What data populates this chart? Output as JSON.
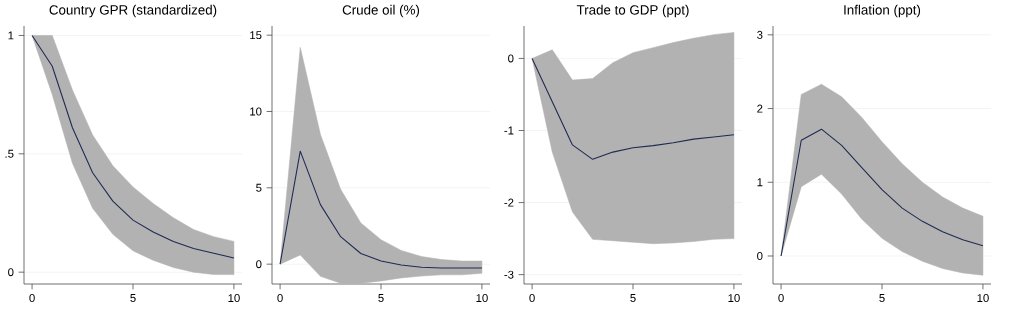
{
  "chart_data": [
    {
      "type": "line",
      "title": "Country GPR (standardized)",
      "x": [
        0,
        1,
        2,
        3,
        4,
        5,
        6,
        7,
        8,
        9,
        10
      ],
      "xlim": [
        -0.4,
        10.4
      ],
      "xticks": [
        0,
        5,
        10
      ],
      "ylim": [
        -0.05,
        1.04
      ],
      "yticks": [
        0,
        {
          "value": 0.5,
          "label": ".5"
        },
        1
      ],
      "grid": "y",
      "series": [
        {
          "color": "#1f2a52",
          "values": [
            1,
            0.87,
            0.61,
            0.42,
            0.3,
            0.22,
            0.17,
            0.13,
            0.1,
            0.08,
            0.06
          ],
          "upper": [
            1,
            1.0,
            0.77,
            0.58,
            0.45,
            0.36,
            0.29,
            0.23,
            0.18,
            0.15,
            0.13
          ],
          "lower": [
            1,
            0.75,
            0.46,
            0.27,
            0.16,
            0.09,
            0.05,
            0.02,
            0.0,
            -0.01,
            -0.01
          ]
        }
      ]
    },
    {
      "type": "line",
      "title": "Crude oil (%)",
      "x": [
        0,
        1,
        2,
        3,
        4,
        5,
        6,
        7,
        8,
        9,
        10
      ],
      "xlim": [
        -0.4,
        10.4
      ],
      "xticks": [
        0,
        5,
        10
      ],
      "ylim": [
        -1.3,
        15.6
      ],
      "yticks": [
        0,
        5,
        10,
        15
      ],
      "grid": "y",
      "series": [
        {
          "color": "#1f2a52",
          "values": [
            0,
            7.4,
            3.9,
            1.8,
            0.7,
            0.2,
            -0.05,
            -0.2,
            -0.25,
            -0.25,
            -0.25
          ],
          "upper": [
            0,
            14.2,
            8.5,
            4.9,
            2.7,
            1.6,
            0.9,
            0.5,
            0.3,
            0.2,
            0.2
          ],
          "lower": [
            0,
            0.6,
            -0.8,
            -1.25,
            -1.25,
            -1.1,
            -0.9,
            -0.78,
            -0.7,
            -0.7,
            -0.6
          ]
        }
      ]
    },
    {
      "type": "line",
      "title": "Trade to GDP (ppt)",
      "x": [
        0,
        1,
        2,
        3,
        4,
        5,
        6,
        7,
        8,
        9,
        10
      ],
      "xlim": [
        -0.4,
        10.4
      ],
      "xticks": [
        0,
        5,
        10
      ],
      "ylim": [
        -3.13,
        0.45
      ],
      "yticks": [
        -3,
        -2,
        -1,
        0
      ],
      "grid": "y",
      "series": [
        {
          "color": "#1f2a52",
          "values": [
            0,
            -0.6,
            -1.2,
            -1.4,
            -1.3,
            -1.24,
            -1.21,
            -1.17,
            -1.12,
            -1.09,
            -1.06
          ],
          "upper": [
            0,
            0.12,
            -0.3,
            -0.28,
            -0.06,
            0.08,
            0.15,
            0.22,
            0.28,
            0.33,
            0.36
          ],
          "lower": [
            0,
            -1.3,
            -2.13,
            -2.51,
            -2.53,
            -2.55,
            -2.57,
            -2.56,
            -2.54,
            -2.51,
            -2.5
          ]
        }
      ]
    },
    {
      "type": "line",
      "title": "Inflation (ppt)",
      "x": [
        0,
        1,
        2,
        3,
        4,
        5,
        6,
        7,
        8,
        9,
        10
      ],
      "xlim": [
        -0.4,
        10.4
      ],
      "xticks": [
        0,
        5,
        10
      ],
      "ylim": [
        -0.38,
        3.12
      ],
      "yticks": [
        0,
        1,
        2,
        3
      ],
      "grid": "y",
      "series": [
        {
          "color": "#1f2a52",
          "values": [
            0,
            1.57,
            1.72,
            1.5,
            1.2,
            0.9,
            0.65,
            0.47,
            0.33,
            0.22,
            0.14
          ],
          "upper": [
            0,
            2.19,
            2.33,
            2.16,
            1.88,
            1.55,
            1.25,
            1.0,
            0.8,
            0.65,
            0.54
          ],
          "lower": [
            0,
            0.94,
            1.11,
            0.84,
            0.5,
            0.24,
            0.06,
            -0.07,
            -0.17,
            -0.23,
            -0.26
          ]
        }
      ]
    }
  ]
}
